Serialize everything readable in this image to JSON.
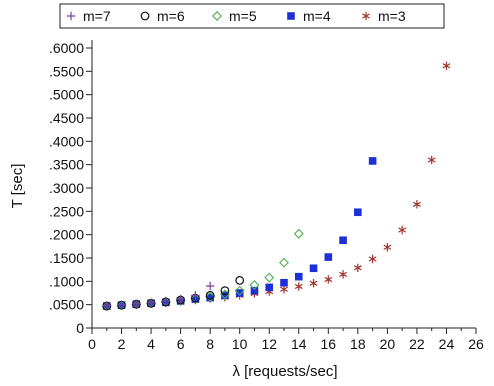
{
  "chart_data": {
    "type": "scatter",
    "title": "",
    "xlabel": "λ [requests/sec]",
    "ylabel": "T [sec]",
    "xlim": [
      0,
      26
    ],
    "ylim": [
      0,
      0.6
    ],
    "x_ticks": [
      0,
      2,
      4,
      6,
      8,
      10,
      12,
      14,
      16,
      18,
      20,
      22,
      24,
      26
    ],
    "x_tick_labels": [
      "0",
      "2",
      "4",
      "6",
      "8",
      "10",
      "12",
      "14",
      "16",
      "18",
      "20",
      "22",
      "24",
      "26"
    ],
    "y_ticks": [
      0,
      0.05,
      0.1,
      0.15,
      0.2,
      0.25,
      0.3,
      0.35,
      0.4,
      0.45,
      0.5,
      0.55,
      0.6
    ],
    "y_tick_labels": [
      "0",
      ".0500",
      ".1000",
      ".1500",
      ".2000",
      ".2500",
      ".3000",
      ".3500",
      ".4000",
      ".4500",
      ".5000",
      ".5500",
      ".6000"
    ],
    "grid": false,
    "legend_position": "top",
    "series": [
      {
        "name": "m=7",
        "marker": "plus",
        "color": "#7b3fa0",
        "x": [
          1,
          2,
          3,
          4,
          5,
          6,
          7,
          8
        ],
        "y": [
          0.048,
          0.05,
          0.052,
          0.054,
          0.058,
          0.062,
          0.07,
          0.09
        ]
      },
      {
        "name": "m=6",
        "marker": "circle",
        "color": "#111111",
        "x": [
          1,
          2,
          3,
          4,
          5,
          6,
          7,
          8,
          9,
          10
        ],
        "y": [
          0.047,
          0.049,
          0.051,
          0.053,
          0.056,
          0.06,
          0.064,
          0.07,
          0.08,
          0.102
        ]
      },
      {
        "name": "m=5",
        "marker": "diamond",
        "color": "#4caf50",
        "x": [
          1,
          2,
          3,
          4,
          5,
          6,
          7,
          8,
          9,
          10,
          11,
          12,
          13,
          14
        ],
        "y": [
          0.047,
          0.049,
          0.051,
          0.053,
          0.056,
          0.059,
          0.063,
          0.067,
          0.072,
          0.08,
          0.092,
          0.108,
          0.14,
          0.202
        ]
      },
      {
        "name": "m=4",
        "marker": "square",
        "color": "#1d2fd6",
        "x": [
          1,
          2,
          3,
          4,
          5,
          6,
          7,
          8,
          9,
          10,
          11,
          12,
          13,
          14,
          15,
          16,
          17,
          18,
          19
        ],
        "y": [
          0.047,
          0.049,
          0.051,
          0.053,
          0.055,
          0.058,
          0.062,
          0.065,
          0.07,
          0.075,
          0.08,
          0.087,
          0.097,
          0.11,
          0.128,
          0.152,
          0.188,
          0.248,
          0.358
        ]
      },
      {
        "name": "m=3",
        "marker": "star",
        "color": "#a0332b",
        "x": [
          1,
          2,
          3,
          4,
          5,
          6,
          7,
          8,
          9,
          10,
          11,
          12,
          13,
          14,
          15,
          16,
          17,
          18,
          19,
          20,
          21,
          22,
          23,
          24
        ],
        "y": [
          0.047,
          0.048,
          0.05,
          0.052,
          0.054,
          0.057,
          0.06,
          0.063,
          0.066,
          0.07,
          0.074,
          0.078,
          0.083,
          0.089,
          0.096,
          0.104,
          0.115,
          0.129,
          0.148,
          0.173,
          0.21,
          0.265,
          0.36,
          0.562
        ]
      }
    ]
  }
}
